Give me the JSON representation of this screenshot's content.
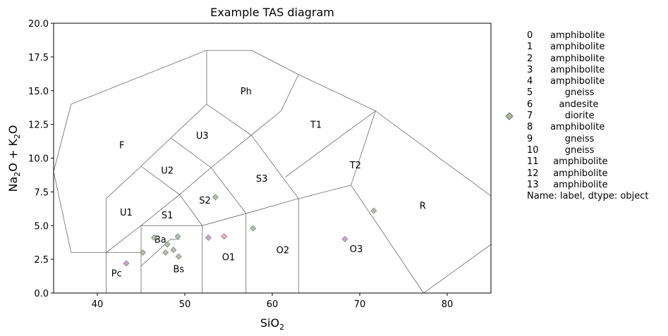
{
  "chart_data": {
    "type": "scatter",
    "title": "Example TAS diagram",
    "xlabel": "SiO2",
    "ylabel": "Na2O + K2O",
    "xlim": [
      35,
      85
    ],
    "ylim": [
      0,
      20
    ],
    "x_ticks": [
      40,
      50,
      60,
      70,
      80
    ],
    "y_ticks": [
      0.0,
      2.5,
      5.0,
      7.5,
      10.0,
      12.5,
      15.0,
      17.5,
      20.0
    ],
    "grid": false,
    "field_labels": [
      {
        "text": "F",
        "x": 42.8,
        "y": 11.0
      },
      {
        "text": "Ph",
        "x": 57.0,
        "y": 15.0
      },
      {
        "text": "U3",
        "x": 52.0,
        "y": 11.7
      },
      {
        "text": "T1",
        "x": 65.0,
        "y": 12.5
      },
      {
        "text": "U2",
        "x": 48.0,
        "y": 9.1
      },
      {
        "text": "T2",
        "x": 69.5,
        "y": 9.5
      },
      {
        "text": "S3",
        "x": 58.8,
        "y": 8.5
      },
      {
        "text": "S2",
        "x": 52.3,
        "y": 6.9
      },
      {
        "text": "U1",
        "x": 43.3,
        "y": 6.0
      },
      {
        "text": "S1",
        "x": 48.0,
        "y": 5.8
      },
      {
        "text": "R",
        "x": 77.2,
        "y": 6.5
      },
      {
        "text": "Ba",
        "x": 47.2,
        "y": 4.0
      },
      {
        "text": "O2",
        "x": 61.2,
        "y": 3.2
      },
      {
        "text": "O3",
        "x": 69.6,
        "y": 3.3
      },
      {
        "text": "O1",
        "x": 55.0,
        "y": 2.7
      },
      {
        "text": "Pc",
        "x": 42.2,
        "y": 1.5
      },
      {
        "text": "Bs",
        "x": 49.3,
        "y": 1.8
      }
    ],
    "points": [
      {
        "x": 45.2,
        "y": 3.0,
        "color": "#a9b8a3"
      },
      {
        "x": 46.5,
        "y": 4.1,
        "color": "#a9b8a3"
      },
      {
        "x": 47.8,
        "y": 3.0,
        "color": "#a9b8a3"
      },
      {
        "x": 48.0,
        "y": 3.6,
        "color": "#a9b8a3"
      },
      {
        "x": 48.7,
        "y": 3.2,
        "color": "#a9b8a3"
      },
      {
        "x": 49.2,
        "y": 4.2,
        "color": "#a9b8a3"
      },
      {
        "x": 49.3,
        "y": 2.7,
        "color": "#a9b8a3"
      },
      {
        "x": 53.5,
        "y": 7.1,
        "color": "#a9b8a3"
      },
      {
        "x": 57.8,
        "y": 4.8,
        "color": "#a9b8a3"
      },
      {
        "x": 71.6,
        "y": 6.1,
        "color": "#a9b8a3"
      },
      {
        "x": 43.3,
        "y": 2.2,
        "color": "#c79bc9"
      },
      {
        "x": 52.7,
        "y": 4.1,
        "color": "#c79bc9"
      },
      {
        "x": 68.3,
        "y": 4.0,
        "color": "#c79bc9"
      },
      {
        "x": 54.5,
        "y": 4.2,
        "color": "#f4a0be"
      }
    ],
    "legend_lines": [
      "0      amphibolite",
      "1      amphibolite",
      "2      amphibolite",
      "3      amphibolite",
      "4      amphibolite",
      "5           gneiss",
      "6         andesite",
      "7           diorite",
      "8      amphibolite",
      "9           gneiss",
      "10         gneiss",
      "11     amphibolite",
      "12     amphibolite",
      "13     amphibolite",
      "Name: label, dtype: object"
    ],
    "legend_marker_color": "#a9b8a3"
  }
}
